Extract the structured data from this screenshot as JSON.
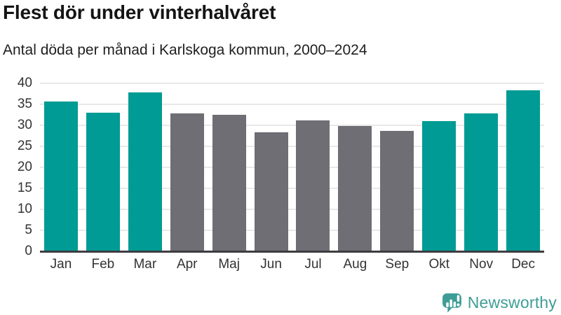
{
  "chart_data": {
    "type": "bar",
    "title": "Flest dör under vinterhalvåret",
    "subtitle": "Antal döda per månad i Karlskoga kommun, 2000–2024",
    "categories": [
      "Jan",
      "Feb",
      "Mar",
      "Apr",
      "Maj",
      "Jun",
      "Jul",
      "Aug",
      "Sep",
      "Okt",
      "Nov",
      "Dec"
    ],
    "values": [
      35.7,
      33.0,
      37.8,
      32.8,
      32.5,
      28.4,
      31.2,
      29.8,
      28.7,
      31.0,
      32.8,
      38.3
    ],
    "highlight": [
      true,
      true,
      true,
      false,
      false,
      false,
      false,
      false,
      false,
      true,
      true,
      true
    ],
    "colors": {
      "winter_highlight": "#009B94",
      "summer_other": "#6E6E74",
      "gridline": "#e8e8e8",
      "axis_line": "#3c3c41",
      "axis_text": "#333333"
    },
    "xlabel": "",
    "ylabel": "",
    "ylim": [
      0,
      40
    ],
    "yticks": [
      0,
      5,
      10,
      15,
      20,
      25,
      30,
      35,
      40
    ],
    "grid": "horizontal",
    "legend": "none"
  },
  "footer": {
    "brand": "Newsworthy",
    "brand_color": "#3E9D96",
    "logo_icon": "newsworthy-bar-chart-speech-bubble-icon"
  }
}
